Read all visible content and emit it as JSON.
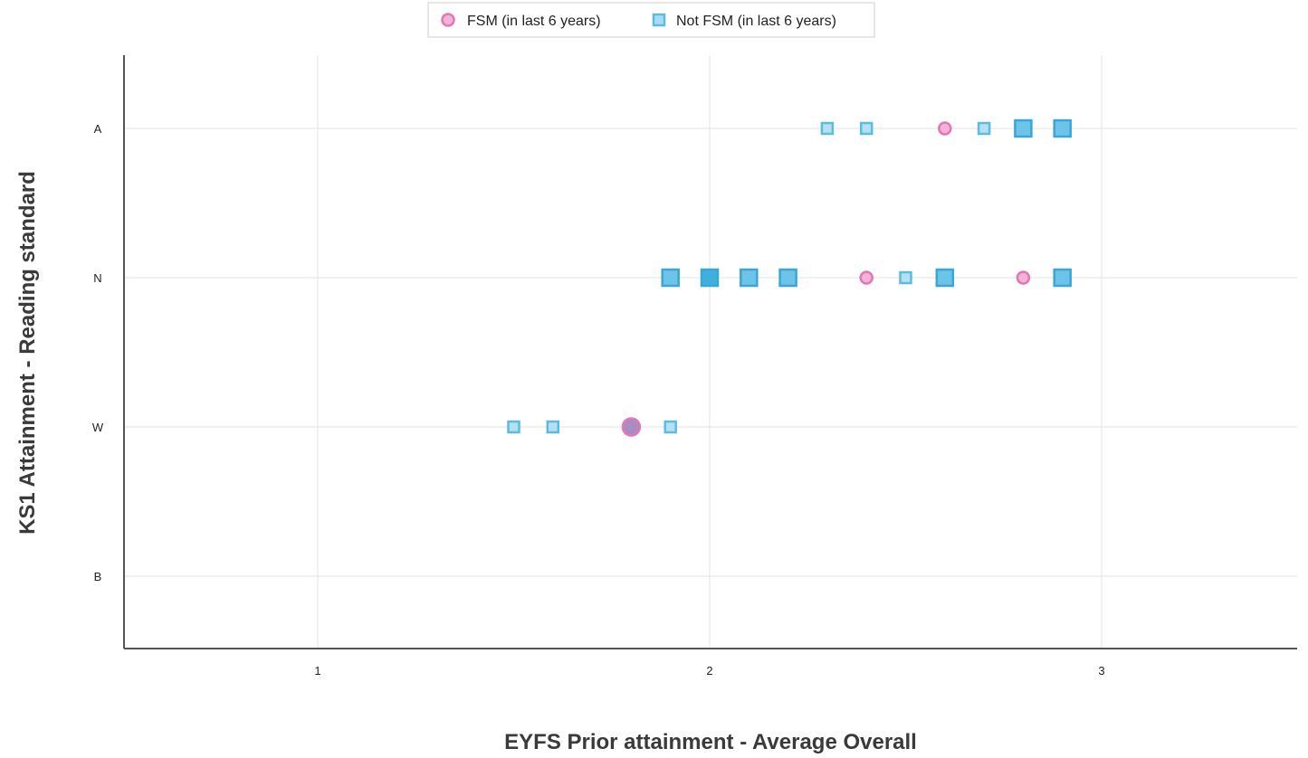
{
  "chart_data": {
    "type": "scatter",
    "xlabel": "EYFS Prior attainment - Average Overall",
    "ylabel": "KS1 Attainment - Reading standard",
    "xlim": [
      0.5,
      3.5
    ],
    "x_ticks": [
      1,
      2,
      3
    ],
    "y_categories": [
      "B",
      "W",
      "N",
      "A"
    ],
    "grid": true,
    "legend_position": "top-center",
    "series": [
      {
        "name": "FSM (in last 6 years)",
        "marker": "circle",
        "color": "#e377b4",
        "points": [
          {
            "x": 2.6,
            "y": "A",
            "count": 1
          },
          {
            "x": 2.4,
            "y": "N",
            "count": 1
          },
          {
            "x": 2.8,
            "y": "N",
            "count": 1
          },
          {
            "x": 1.8,
            "y": "W",
            "count": 2
          }
        ]
      },
      {
        "name": "Not FSM (in last 6 years)",
        "marker": "square",
        "color": "#5bbbe2",
        "points": [
          {
            "x": 2.3,
            "y": "A",
            "count": 1
          },
          {
            "x": 2.4,
            "y": "A",
            "count": 1
          },
          {
            "x": 2.7,
            "y": "A",
            "count": 1
          },
          {
            "x": 2.8,
            "y": "A",
            "count": 3
          },
          {
            "x": 2.9,
            "y": "A",
            "count": 3
          },
          {
            "x": 1.9,
            "y": "N",
            "count": 3
          },
          {
            "x": 2.0,
            "y": "N",
            "count": 4
          },
          {
            "x": 2.1,
            "y": "N",
            "count": 3
          },
          {
            "x": 2.2,
            "y": "N",
            "count": 3
          },
          {
            "x": 2.5,
            "y": "N",
            "count": 1
          },
          {
            "x": 2.6,
            "y": "N",
            "count": 3
          },
          {
            "x": 2.9,
            "y": "N",
            "count": 3
          },
          {
            "x": 1.5,
            "y": "W",
            "count": 1
          },
          {
            "x": 1.6,
            "y": "W",
            "count": 1
          },
          {
            "x": 1.9,
            "y": "W",
            "count": 1
          }
        ]
      }
    ]
  }
}
